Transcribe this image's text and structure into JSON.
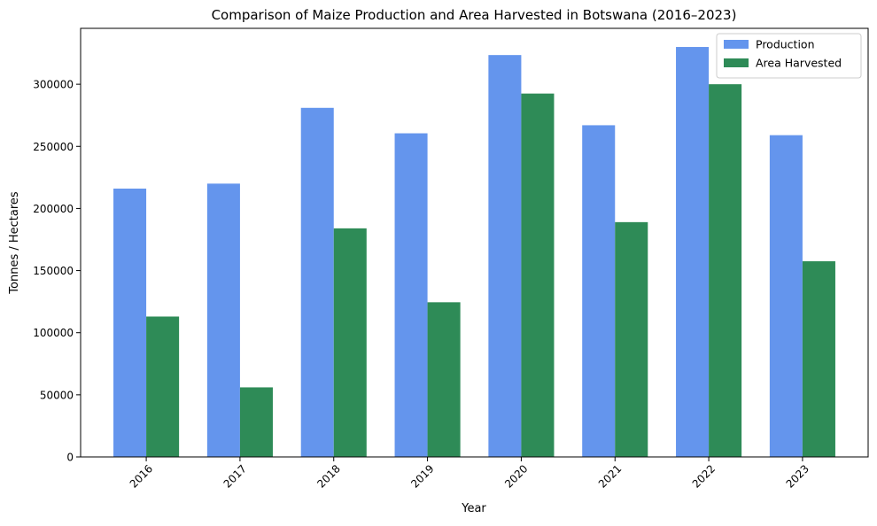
{
  "chart_data": {
    "type": "bar",
    "title": "Comparison of Maize Production and Area Harvested in Botswana (2016–2023)",
    "xlabel": "Year",
    "ylabel": "Tonnes / Hectares",
    "categories": [
      "2016",
      "2017",
      "2018",
      "2019",
      "2020",
      "2021",
      "2022",
      "2023"
    ],
    "series": [
      {
        "name": "Production",
        "color": "#6495ED",
        "values": [
          216000,
          220000,
          281000,
          260500,
          323500,
          267000,
          330000,
          259000
        ]
      },
      {
        "name": "Area Harvested",
        "color": "#2E8B57",
        "values": [
          113000,
          56000,
          184000,
          124500,
          292500,
          189000,
          300000,
          157500
        ]
      }
    ],
    "ylim": [
      0,
      345000
    ],
    "yticks": [
      0,
      50000,
      100000,
      150000,
      200000,
      250000,
      300000
    ],
    "ytick_labels": [
      "0",
      "50000",
      "100000",
      "150000",
      "200000",
      "250000",
      "300000"
    ],
    "grid": false,
    "legend_position": "top-right"
  }
}
